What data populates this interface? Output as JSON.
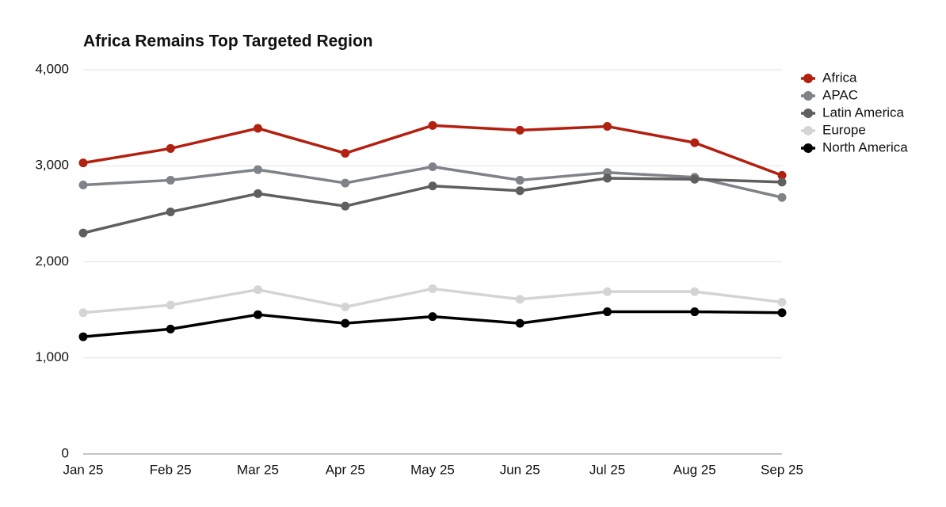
{
  "chart_data": {
    "type": "line",
    "title": "Africa Remains Top Targeted Region",
    "categories": [
      "Jan 25",
      "Feb 25",
      "Mar 25",
      "Apr 25",
      "May 25",
      "Jun 25",
      "Jul 25",
      "Aug 25",
      "Sep 25"
    ],
    "series": [
      {
        "name": "Africa",
        "color": "#b22010",
        "values": [
          3030,
          3180,
          3390,
          3130,
          3420,
          3370,
          3410,
          3240,
          2900
        ]
      },
      {
        "name": "APAC",
        "color": "#7f8389",
        "values": [
          2800,
          2850,
          2960,
          2820,
          2990,
          2850,
          2930,
          2880,
          2670
        ]
      },
      {
        "name": "Latin America",
        "color": "#5f5f5f",
        "values": [
          2300,
          2520,
          2710,
          2580,
          2790,
          2740,
          2870,
          2860,
          2830
        ]
      },
      {
        "name": "Europe",
        "color": "#d4d4d4",
        "values": [
          1470,
          1550,
          1710,
          1530,
          1720,
          1610,
          1690,
          1690,
          1580
        ]
      },
      {
        "name": "North America",
        "color": "#000000",
        "values": [
          1220,
          1300,
          1450,
          1360,
          1430,
          1360,
          1480,
          1480,
          1470
        ]
      }
    ],
    "ylim": [
      0,
      4000
    ],
    "yticks": [
      0,
      {
        "value": 1000,
        "label": "1,000"
      },
      {
        "value": 2000,
        "label": "2,000"
      },
      {
        "value": 3000,
        "label": "3,000"
      },
      {
        "value": 4000,
        "label": "4,000"
      }
    ],
    "grid": true,
    "legend": "right"
  }
}
